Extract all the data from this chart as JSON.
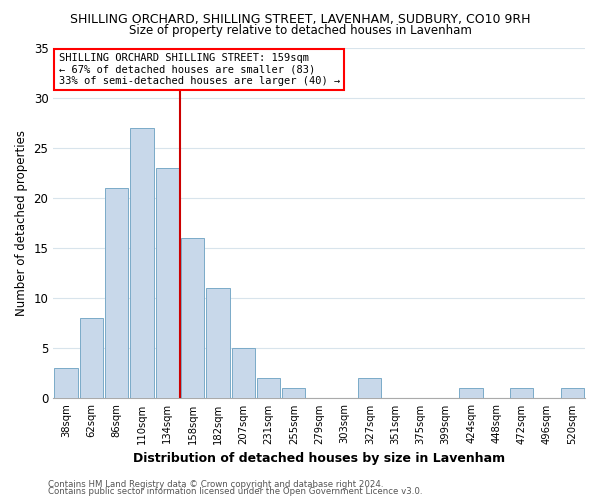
{
  "title": "SHILLING ORCHARD, SHILLING STREET, LAVENHAM, SUDBURY, CO10 9RH",
  "subtitle": "Size of property relative to detached houses in Lavenham",
  "xlabel": "Distribution of detached houses by size in Lavenham",
  "ylabel": "Number of detached properties",
  "bar_color": "#c8d8ea",
  "bar_edge_color": "#7aaac8",
  "bin_labels": [
    "38sqm",
    "62sqm",
    "86sqm",
    "110sqm",
    "134sqm",
    "158sqm",
    "182sqm",
    "207sqm",
    "231sqm",
    "255sqm",
    "279sqm",
    "303sqm",
    "327sqm",
    "351sqm",
    "375sqm",
    "399sqm",
    "424sqm",
    "448sqm",
    "472sqm",
    "496sqm",
    "520sqm"
  ],
  "bar_heights": [
    3,
    8,
    21,
    27,
    23,
    16,
    11,
    5,
    2,
    1,
    0,
    0,
    2,
    0,
    0,
    0,
    1,
    0,
    1,
    0,
    1
  ],
  "reference_line_color": "#cc0000",
  "ylim": [
    0,
    35
  ],
  "yticks": [
    0,
    5,
    10,
    15,
    20,
    25,
    30,
    35
  ],
  "annotation_line1": "SHILLING ORCHARD SHILLING STREET: 159sqm",
  "annotation_line2": "← 67% of detached houses are smaller (83)",
  "annotation_line3": "33% of semi-detached houses are larger (40) →",
  "footnote1": "Contains HM Land Registry data © Crown copyright and database right 2024.",
  "footnote2": "Contains public sector information licensed under the Open Government Licence v3.0.",
  "background_color": "#ffffff",
  "grid_color": "#d8e4ec"
}
